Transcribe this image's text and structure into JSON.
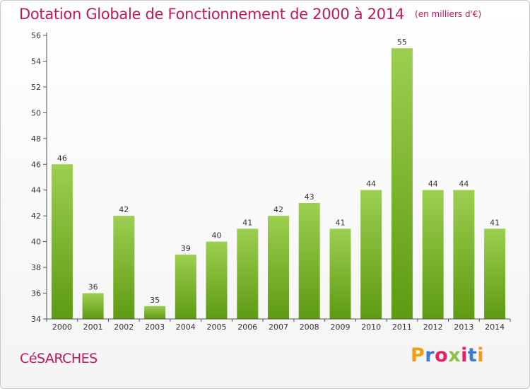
{
  "header": {
    "title": "Dotation Globale de Fonctionnement de 2000 à 2014",
    "unit_note": "(en milliers d'€)"
  },
  "footer": {
    "city": "CéSARCHES",
    "logo": {
      "text": "Proxiti",
      "letter_colors": [
        "#f39c12",
        "#3a7bd5",
        "#e91e63",
        "#8bc34a",
        "#e91e63",
        "#3a7bd5",
        "#f39c12"
      ]
    }
  },
  "chart_data": {
    "type": "bar",
    "categories": [
      "2000",
      "2001",
      "2002",
      "2003",
      "2004",
      "2005",
      "2006",
      "2007",
      "2008",
      "2009",
      "2010",
      "2011",
      "2012",
      "2013",
      "2014"
    ],
    "values": [
      46,
      36,
      42,
      35,
      39,
      40,
      41,
      42,
      43,
      41,
      44,
      55,
      44,
      44,
      41
    ],
    "ylim": [
      34,
      56
    ],
    "yticks": [
      34,
      36,
      38,
      40,
      42,
      44,
      46,
      48,
      50,
      52,
      54,
      56
    ],
    "grid": false,
    "colors": {
      "bar_top": "#9ccf4f",
      "bar_bottom": "#5e9a12",
      "axis": "#555555",
      "tick_text": "#333333",
      "value_text": "#333333"
    }
  }
}
